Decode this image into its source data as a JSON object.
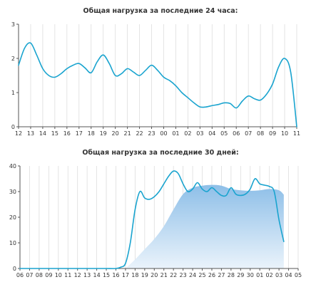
{
  "colors": {
    "line": "#1aa4cf",
    "area_top": "#8ebfe8",
    "area_bottom": "#eaf3fb",
    "axis": "#555555",
    "grid": "#dddddd"
  },
  "chart_data": [
    {
      "type": "line",
      "title": "Общая нагрузка за последние 24 часа:",
      "xlabel": "",
      "ylabel": "",
      "ylim": [
        0,
        3
      ],
      "yticks": [
        "0",
        "1",
        "2",
        "3"
      ],
      "x_labels": [
        "12",
        "13",
        "14",
        "15",
        "16",
        "17",
        "18",
        "19",
        "20",
        "21",
        "22",
        "23",
        "00",
        "01",
        "02",
        "03",
        "04",
        "05",
        "06",
        "07",
        "08",
        "09",
        "10",
        "11"
      ],
      "grid": "vertical",
      "series": [
        {
          "values": [
            [
              0,
              1.8
            ],
            [
              0.5,
              2.3
            ],
            [
              1,
              2.45
            ],
            [
              1.5,
              2.1
            ],
            [
              2,
              1.7
            ],
            [
              2.5,
              1.5
            ],
            [
              3,
              1.45
            ],
            [
              3.5,
              1.55
            ],
            [
              4,
              1.7
            ],
            [
              4.5,
              1.8
            ],
            [
              5,
              1.85
            ],
            [
              5.5,
              1.72
            ],
            [
              6,
              1.58
            ],
            [
              6.5,
              1.9
            ],
            [
              7,
              2.1
            ],
            [
              7.5,
              1.85
            ],
            [
              8,
              1.5
            ],
            [
              8.5,
              1.55
            ],
            [
              9,
              1.7
            ],
            [
              9.5,
              1.6
            ],
            [
              10,
              1.5
            ],
            [
              10.5,
              1.65
            ],
            [
              11,
              1.8
            ],
            [
              11.5,
              1.65
            ],
            [
              12,
              1.45
            ],
            [
              12.5,
              1.35
            ],
            [
              13,
              1.2
            ],
            [
              13.5,
              1.0
            ],
            [
              14,
              0.85
            ],
            [
              14.5,
              0.7
            ],
            [
              15,
              0.58
            ],
            [
              15.5,
              0.58
            ],
            [
              16,
              0.62
            ],
            [
              16.5,
              0.65
            ],
            [
              17,
              0.7
            ],
            [
              17.5,
              0.68
            ],
            [
              18,
              0.55
            ],
            [
              18.5,
              0.75
            ],
            [
              19,
              0.9
            ],
            [
              19.5,
              0.82
            ],
            [
              20,
              0.78
            ],
            [
              20.5,
              0.95
            ],
            [
              21,
              1.25
            ],
            [
              21.5,
              1.75
            ],
            [
              22,
              2.0
            ],
            [
              22.5,
              1.6
            ],
            [
              23,
              0.0
            ]
          ]
        }
      ]
    },
    {
      "type": "line",
      "title": "Общая нагрузка за последние 30 дней:",
      "xlabel": "",
      "ylabel": "",
      "ylim": [
        0,
        40
      ],
      "yticks": [
        "0",
        "10",
        "20",
        "30",
        "40"
      ],
      "x_labels": [
        "06",
        "07",
        "08",
        "09",
        "10",
        "11",
        "12",
        "13",
        "14",
        "15",
        "16",
        "17",
        "18",
        "19",
        "20",
        "21",
        "22",
        "23",
        "24",
        "25",
        "26",
        "27",
        "28",
        "29",
        "30",
        "01",
        "02",
        "03",
        "04",
        "05"
      ],
      "grid": "vertical",
      "series": [
        {
          "values": [
            [
              0,
              0
            ],
            [
              1,
              0
            ],
            [
              2,
              0
            ],
            [
              3,
              0
            ],
            [
              4,
              0
            ],
            [
              5,
              0
            ],
            [
              6,
              0
            ],
            [
              7,
              0
            ],
            [
              8,
              0
            ],
            [
              9,
              0
            ],
            [
              10,
              0
            ],
            [
              10.5,
              0.5
            ],
            [
              11,
              2
            ],
            [
              11.5,
              10
            ],
            [
              12,
              23
            ],
            [
              12.5,
              30
            ],
            [
              13,
              27.5
            ],
            [
              13.5,
              27
            ],
            [
              14,
              28
            ],
            [
              14.5,
              30
            ],
            [
              15,
              33
            ],
            [
              15.5,
              36
            ],
            [
              16,
              38
            ],
            [
              16.5,
              37
            ],
            [
              17,
              33
            ],
            [
              17.5,
              30
            ],
            [
              18,
              31
            ],
            [
              18.5,
              33.5
            ],
            [
              19,
              31
            ],
            [
              19.5,
              30
            ],
            [
              20,
              31.5
            ],
            [
              20.5,
              30
            ],
            [
              21,
              28.5
            ],
            [
              21.5,
              28.5
            ],
            [
              22,
              31.5
            ],
            [
              22.5,
              29
            ],
            [
              23,
              28.5
            ],
            [
              23.5,
              29
            ],
            [
              24,
              31
            ],
            [
              24.5,
              35
            ],
            [
              25,
              33
            ],
            [
              25.5,
              32.5
            ],
            [
              26,
              32
            ],
            [
              26.5,
              30
            ],
            [
              27,
              19
            ],
            [
              27.5,
              10.5
            ]
          ]
        },
        {
          "values": [
            [
              11,
              0
            ],
            [
              12,
              3.5
            ],
            [
              13,
              7.5
            ],
            [
              14,
              11.5
            ],
            [
              15,
              16.5
            ],
            [
              16,
              23
            ],
            [
              17,
              29
            ],
            [
              18,
              31.5
            ],
            [
              19,
              32.3
            ],
            [
              20,
              32.6
            ],
            [
              21,
              32.3
            ],
            [
              22,
              31
            ],
            [
              23,
              30.5
            ],
            [
              24,
              30.3
            ],
            [
              25,
              30.5
            ],
            [
              26,
              31
            ],
            [
              27,
              30.5
            ],
            [
              27.5,
              28.8
            ]
          ]
        }
      ]
    }
  ]
}
